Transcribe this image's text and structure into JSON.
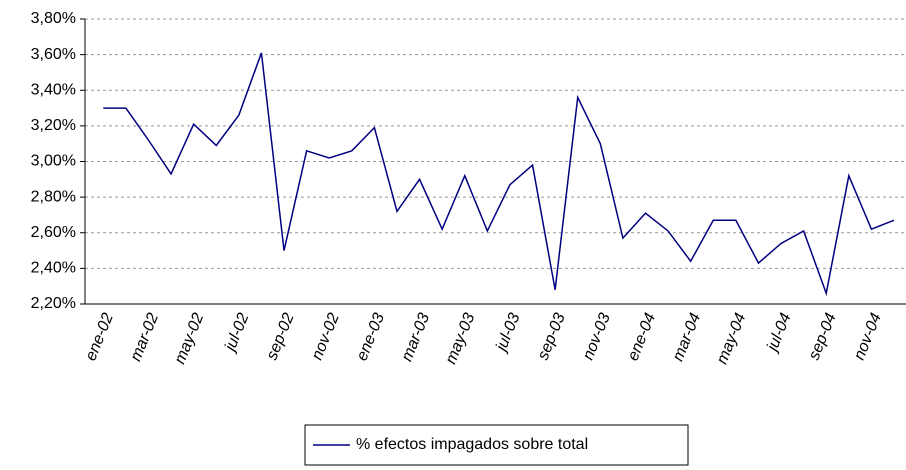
{
  "chart_data": {
    "type": "line",
    "categories": [
      "ene-02",
      null,
      "mar-02",
      null,
      "may-02",
      null,
      "jul-02",
      null,
      "sep-02",
      null,
      "nov-02",
      null,
      "ene-03",
      null,
      "mar-03",
      null,
      "may-03",
      null,
      "jul-03",
      null,
      "sep-03",
      null,
      "nov-03",
      null,
      "ene-04",
      null,
      "mar-04",
      null,
      "may-04",
      null,
      "jul-04",
      null,
      "sep-04",
      null,
      "nov-04",
      null
    ],
    "series": [
      {
        "name": "% efectos impagados sobre total",
        "color": "#000080",
        "values": [
          3.3,
          3.3,
          3.12,
          2.93,
          3.21,
          3.09,
          3.26,
          3.61,
          2.5,
          3.06,
          3.02,
          3.06,
          3.19,
          2.72,
          2.9,
          2.62,
          2.92,
          2.61,
          2.87,
          2.98,
          2.28,
          3.36,
          3.1,
          2.57,
          2.71,
          2.61,
          2.44,
          2.67,
          2.67,
          2.43,
          2.54,
          2.61,
          2.26,
          2.92,
          2.62,
          2.67
        ]
      }
    ],
    "ylim": [
      2.2,
      3.8
    ],
    "yticks": [
      {
        "value": 2.2,
        "label": "2,20%"
      },
      {
        "value": 2.4,
        "label": "2,40%"
      },
      {
        "value": 2.6,
        "label": "2,60%"
      },
      {
        "value": 2.8,
        "label": "2,80%"
      },
      {
        "value": 3.0,
        "label": "3,00%"
      },
      {
        "value": 3.2,
        "label": "3,20%"
      },
      {
        "value": 3.4,
        "label": "3,40%"
      },
      {
        "value": 3.6,
        "label": "3,60%"
      },
      {
        "value": 3.8,
        "label": "3,80%"
      }
    ],
    "grid": true,
    "legend": "bottom"
  }
}
